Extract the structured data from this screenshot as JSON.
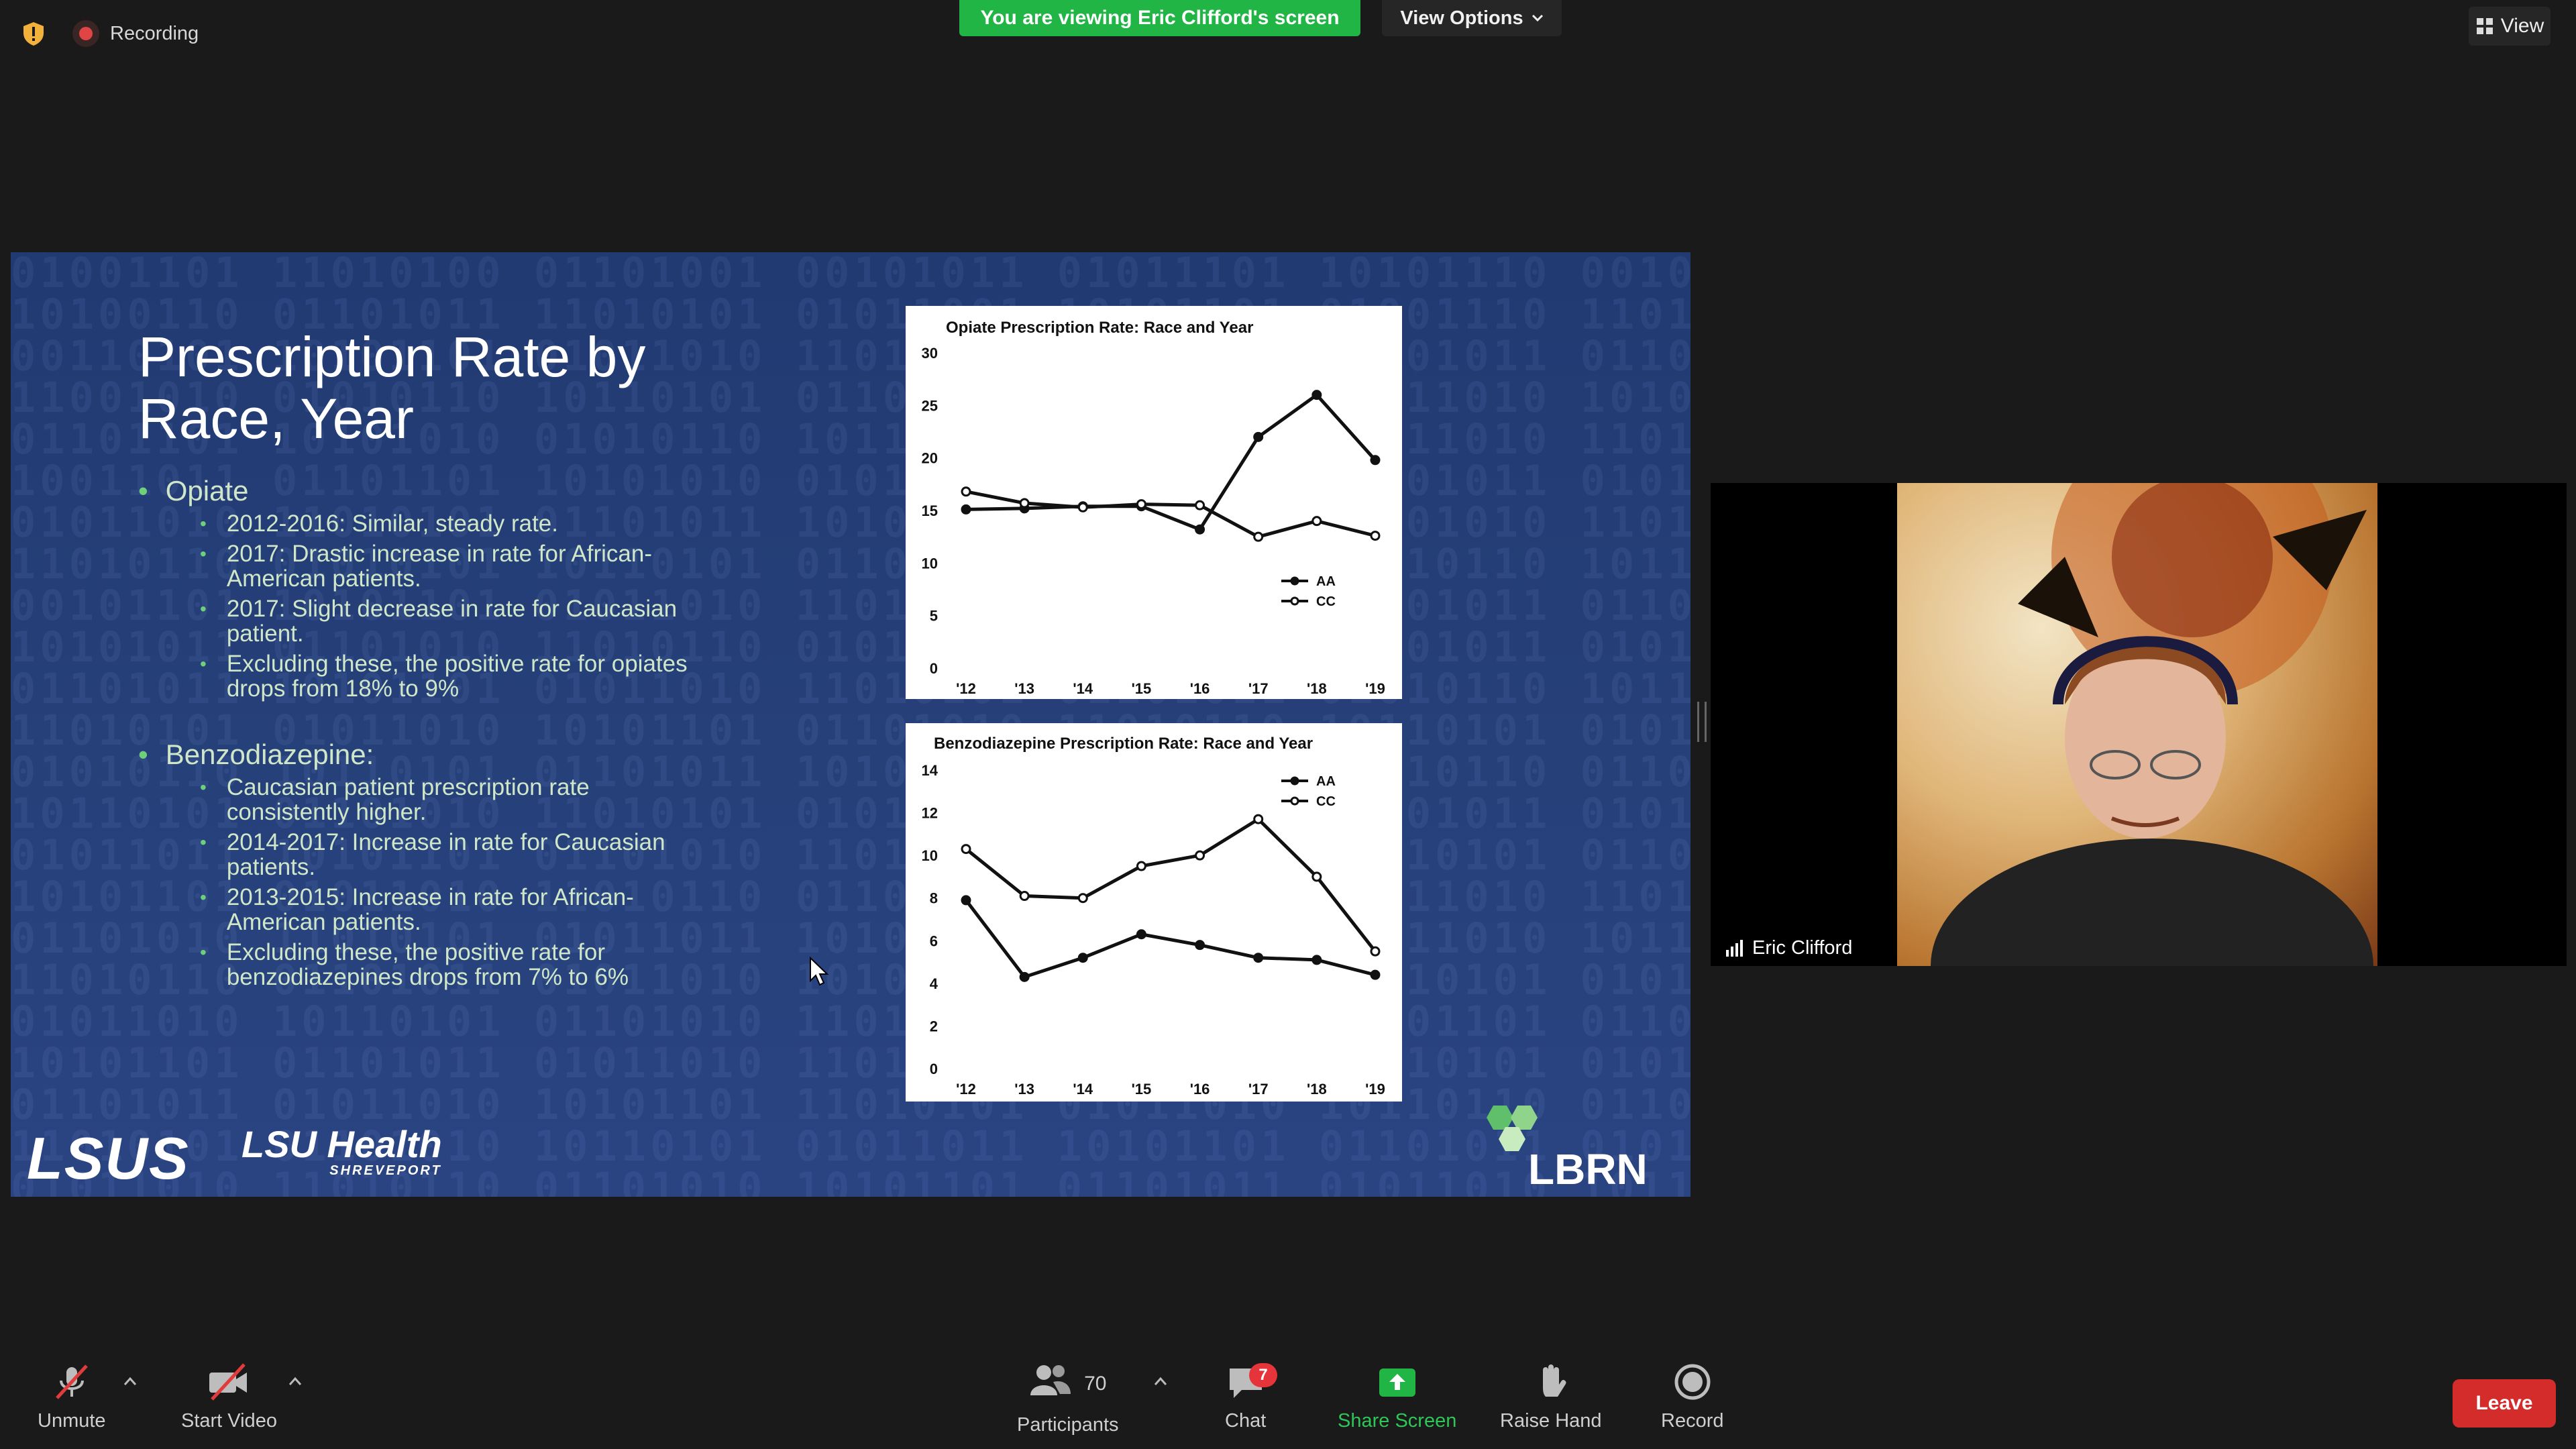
{
  "top_bar": {
    "recording_label": "Recording",
    "viewing_banner": "You are viewing Eric Clifford's screen",
    "view_options_label": "View Options",
    "view_label": "View"
  },
  "slide": {
    "title_line1": "Prescription Rate by",
    "title_line2": "Race, Year",
    "bullets": [
      {
        "label": "Opiate",
        "sub": [
          "2012-2016: Similar, steady rate.",
          "2017: Drastic increase in rate for African-American patients.",
          "2017: Slight decrease in rate for Caucasian patient.",
          "Excluding these, the positive rate for opiates drops from 18% to 9%"
        ]
      },
      {
        "label": "Benzodiazepine:",
        "sub": [
          "Caucasian patient prescription rate consistently higher.",
          "2014-2017: Increase in rate for Caucasian patients.",
          "2013-2015: Increase in rate for African-American patients.",
          "Excluding these, the positive rate for benzodiazepines drops from 7% to 6%"
        ]
      }
    ],
    "logos": {
      "lsus": "LSUS",
      "lsu_health": "LSU Health",
      "shreveport": "SHREVEPORT",
      "lbrn": "LBRN"
    }
  },
  "chart_data": [
    {
      "type": "line",
      "title": "Opiate  Prescription Rate: Race and Year",
      "x": [
        "'12",
        "'13",
        "'14",
        "'15",
        "'16",
        "'17",
        "'18",
        "'19"
      ],
      "ylim": [
        0,
        30
      ],
      "yticks": [
        0,
        5,
        10,
        15,
        20,
        25,
        30
      ],
      "legend_position": "right",
      "grid": false,
      "series": [
        {
          "name": "AA",
          "marker": "filled",
          "values": [
            15.1,
            15.2,
            15.4,
            15.4,
            13.2,
            22,
            26,
            19.8
          ]
        },
        {
          "name": "CC",
          "marker": "open",
          "values": [
            16.8,
            15.7,
            15.3,
            15.6,
            15.5,
            12.5,
            14,
            12.6
          ]
        }
      ]
    },
    {
      "type": "line",
      "title": "Benzodiazepine Prescription Rate: Race and Year",
      "x": [
        "'12",
        "'13",
        "'14",
        "'15",
        "'16",
        "'17",
        "'18",
        "'19"
      ],
      "ylim": [
        0,
        14
      ],
      "yticks": [
        0,
        2,
        4,
        6,
        8,
        10,
        12,
        14
      ],
      "legend_position": "top-right",
      "grid": false,
      "series": [
        {
          "name": "AA",
          "marker": "filled",
          "values": [
            7.9,
            4.3,
            5.2,
            6.3,
            5.8,
            5.2,
            5.1,
            4.4
          ]
        },
        {
          "name": "CC",
          "marker": "open",
          "values": [
            10.3,
            8.1,
            8.0,
            9.5,
            10.0,
            11.7,
            9.0,
            5.5
          ]
        }
      ]
    }
  ],
  "video": {
    "participant_name": "Eric Clifford"
  },
  "toolbar": {
    "unmute": "Unmute",
    "start_video": "Start Video",
    "participants": "Participants",
    "participants_count": "70",
    "chat": "Chat",
    "chat_badge": "7",
    "share_screen": "Share Screen",
    "raise_hand": "Raise Hand",
    "record": "Record",
    "leave": "Leave"
  }
}
